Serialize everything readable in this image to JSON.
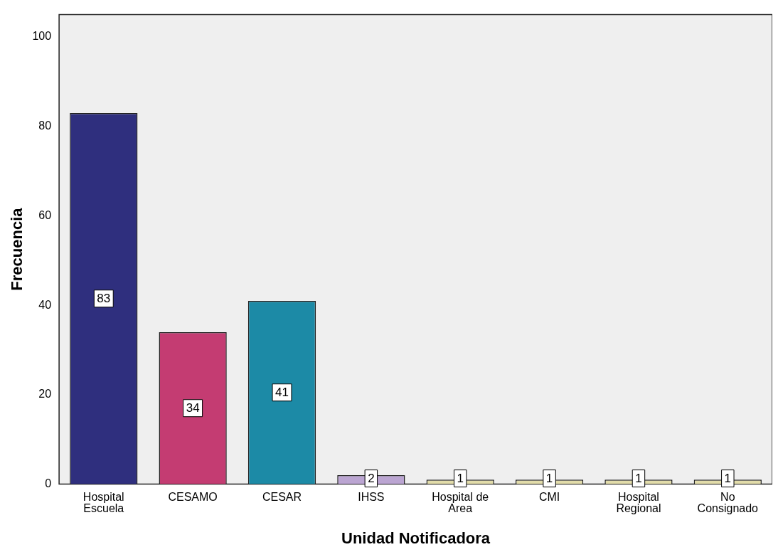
{
  "chart_data": {
    "type": "bar",
    "xlabel": "Unidad Notificadora",
    "ylabel": "Frecuencia",
    "categories": [
      "Hospital\nEscuela",
      "CESAMO",
      "CESAR",
      "IHSS",
      "Hospital de\nArea",
      "CMI",
      "Hospital\nRegional",
      "No\nConsignado"
    ],
    "values": [
      83,
      34,
      41,
      2,
      1,
      1,
      1,
      1
    ],
    "colors": [
      "#2f2f7e",
      "#c43c72",
      "#1c8aa6",
      "#bba5d2",
      "#e2dcaa",
      "#e2dcaa",
      "#e2dcaa",
      "#e2dcaa"
    ],
    "ylim": [
      0,
      105
    ],
    "yticks": [
      0,
      20,
      40,
      60,
      80,
      100
    ],
    "grid": false,
    "legend": false,
    "data_labels": true
  }
}
